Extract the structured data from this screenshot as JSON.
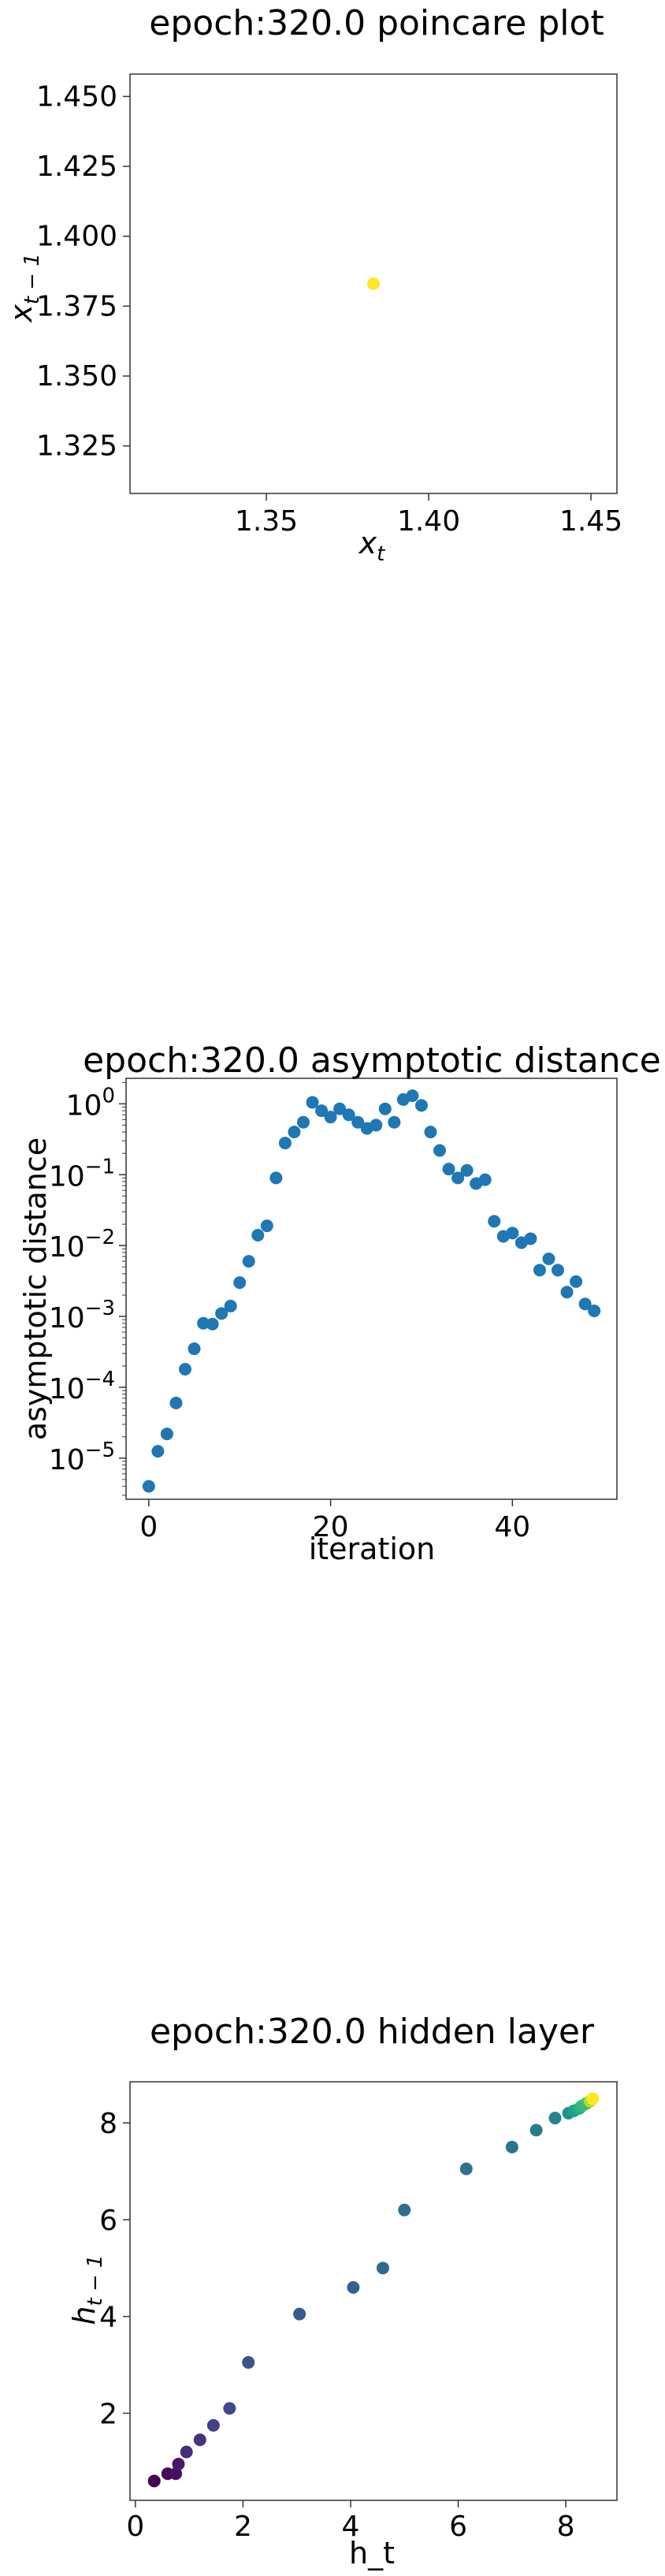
{
  "chart_data": [
    {
      "type": "scatter",
      "title": "epoch:320.0 poincare plot",
      "xlabel": "x",
      "xlabel_sub": "t",
      "ylabel": "x",
      "ylabel_sub": "t − 1",
      "xlim": [
        1.308,
        1.458
      ],
      "ylim": [
        1.308,
        1.458
      ],
      "xticks": [
        1.35,
        1.4,
        1.45
      ],
      "xtick_labels": [
        "1.35",
        "1.40",
        "1.45"
      ],
      "yticks": [
        1.325,
        1.35,
        1.375,
        1.4,
        1.425,
        1.45
      ],
      "ytick_labels": [
        "1.325",
        "1.350",
        "1.375",
        "1.400",
        "1.425",
        "1.450"
      ],
      "points": [
        {
          "x": 1.383,
          "y": 1.383
        }
      ],
      "point_color": "#fde725"
    },
    {
      "type": "scatter",
      "title": "epoch:320.0 asymptotic distance",
      "xlabel": "iteration",
      "ylabel": "asymptotic distance",
      "yscale": "log",
      "xlim": [
        -2.5,
        51.5
      ],
      "ylim_log10": [
        -5.58,
        0.36
      ],
      "xticks": [
        0,
        20,
        40
      ],
      "xtick_labels": [
        "0",
        "20",
        "40"
      ],
      "yticks_log10": [
        -5,
        -4,
        -3,
        -2,
        -1,
        0
      ],
      "ytick_labels": [
        "10",
        "10",
        "10",
        "10",
        "10",
        "10"
      ],
      "ytick_exponents": [
        "−5",
        "−4",
        "−3",
        "−2",
        "−1",
        "0"
      ],
      "x": [
        0,
        1,
        2,
        3,
        4,
        5,
        6,
        7,
        8,
        9,
        10,
        11,
        12,
        13,
        14,
        15,
        16,
        17,
        18,
        19,
        20,
        21,
        22,
        23,
        24,
        25,
        26,
        27,
        28,
        29,
        30,
        31,
        32,
        33,
        34,
        35,
        36,
        37,
        38,
        39,
        40,
        41,
        42,
        43,
        44,
        45,
        46,
        47,
        48,
        49
      ],
      "y": [
        4e-06,
        1.25e-05,
        2.2e-05,
        6e-05,
        0.00018,
        0.00035,
        0.0008,
        0.00078,
        0.0011,
        0.0014,
        0.003,
        0.006,
        0.014,
        0.019,
        0.09,
        0.28,
        0.4,
        0.55,
        1.05,
        0.8,
        0.65,
        0.85,
        0.7,
        0.55,
        0.45,
        0.5,
        0.85,
        0.55,
        1.15,
        1.3,
        0.95,
        0.4,
        0.22,
        0.12,
        0.09,
        0.115,
        0.075,
        0.085,
        0.022,
        0.0135,
        0.015,
        0.011,
        0.0125,
        0.0045,
        0.0065,
        0.0045,
        0.0022,
        0.0031,
        0.0015,
        0.0012
      ],
      "point_color": "#1f77b4"
    },
    {
      "type": "scatter",
      "title": "epoch:320.0 hidden layer",
      "xlabel": "h_t",
      "ylabel": "h",
      "ylabel_sub": "t − 1",
      "xlim": [
        -0.1,
        8.95
      ],
      "ylim": [
        0.2,
        8.85
      ],
      "xticks": [
        0,
        2,
        4,
        6,
        8
      ],
      "xtick_labels": [
        "0",
        "2",
        "4",
        "6",
        "8"
      ],
      "yticks": [
        2,
        4,
        6,
        8
      ],
      "ytick_labels": [
        "2",
        "4",
        "6",
        "8"
      ],
      "points": [
        {
          "x": 0.35,
          "y": 0.6,
          "c": "#440154"
        },
        {
          "x": 0.6,
          "y": 0.75,
          "c": "#46085c"
        },
        {
          "x": 0.75,
          "y": 0.75,
          "c": "#471063"
        },
        {
          "x": 0.8,
          "y": 0.95,
          "c": "#48186a"
        },
        {
          "x": 0.95,
          "y": 1.2,
          "c": "#472d7b"
        },
        {
          "x": 1.2,
          "y": 1.45,
          "c": "#463480"
        },
        {
          "x": 1.45,
          "y": 1.75,
          "c": "#424086"
        },
        {
          "x": 1.75,
          "y": 2.1,
          "c": "#3e4989"
        },
        {
          "x": 2.1,
          "y": 3.05,
          "c": "#3b528b"
        },
        {
          "x": 3.05,
          "y": 4.05,
          "c": "#375b8d"
        },
        {
          "x": 4.05,
          "y": 4.6,
          "c": "#33638d"
        },
        {
          "x": 4.6,
          "y": 5.0,
          "c": "#30698e"
        },
        {
          "x": 5.0,
          "y": 6.2,
          "c": "#2d708e"
        },
        {
          "x": 6.15,
          "y": 7.05,
          "c": "#2c728e"
        },
        {
          "x": 7.0,
          "y": 7.5,
          "c": "#2b758e"
        },
        {
          "x": 7.45,
          "y": 7.85,
          "c": "#297b8e"
        },
        {
          "x": 7.8,
          "y": 8.1,
          "c": "#26828e"
        },
        {
          "x": 8.05,
          "y": 8.2,
          "c": "#21918c"
        },
        {
          "x": 8.15,
          "y": 8.25,
          "c": "#1fa088"
        },
        {
          "x": 8.25,
          "y": 8.3,
          "c": "#27ad81"
        },
        {
          "x": 8.3,
          "y": 8.35,
          "c": "#35b779"
        },
        {
          "x": 8.38,
          "y": 8.4,
          "c": "#3dbc74"
        },
        {
          "x": 8.45,
          "y": 8.45,
          "c": "#addc30"
        },
        {
          "x": 8.5,
          "y": 8.5,
          "c": "#fde725"
        }
      ]
    }
  ]
}
